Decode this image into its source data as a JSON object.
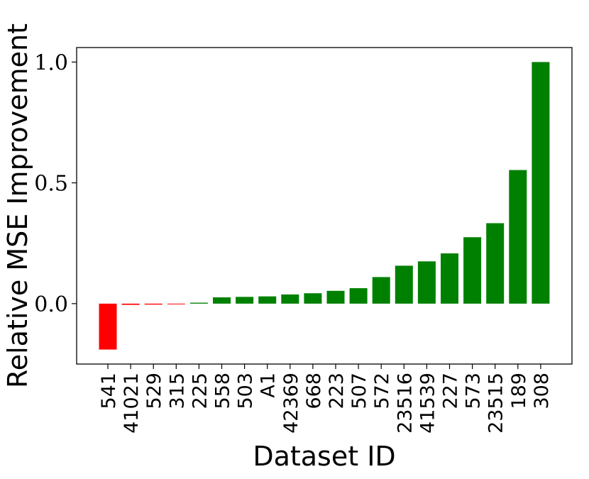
{
  "chart_data": {
    "type": "bar",
    "title": "",
    "xlabel": "Dataset ID",
    "ylabel": "Relative MSE Improvement",
    "ylim": [
      -0.25,
      1.06
    ],
    "yticks": [
      0.0,
      0.5,
      1.0
    ],
    "ytick_labels": [
      "0.0",
      "0.5",
      "1.0"
    ],
    "grid": false,
    "legend": "none",
    "categories": [
      "541",
      "41021",
      "529",
      "315",
      "225",
      "558",
      "503",
      "A1",
      "42369",
      "668",
      "223",
      "507",
      "572",
      "23516",
      "41539",
      "227",
      "573",
      "23515",
      "189",
      "308"
    ],
    "values": [
      -0.19,
      -0.005,
      -0.004,
      -0.002,
      0.004,
      0.026,
      0.028,
      0.03,
      0.038,
      0.043,
      0.053,
      0.064,
      0.11,
      0.157,
      0.175,
      0.208,
      0.275,
      0.333,
      0.553,
      1.0
    ],
    "colors": {
      "positive": "#008000",
      "negative": "#ff0000"
    }
  }
}
